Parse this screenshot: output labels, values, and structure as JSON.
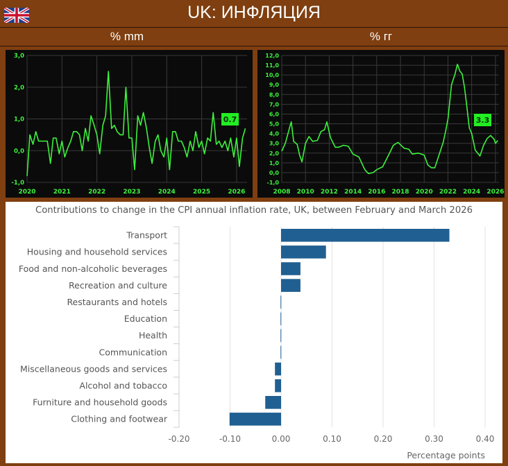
{
  "header": {
    "title": "UK: ИНФЛЯЦИЯ",
    "flag_icon": "uk-flag-icon"
  },
  "subtitles": {
    "left": "% mm",
    "right": "% гг"
  },
  "colors": {
    "background": "#7f3f10",
    "line": "#3df23d",
    "badge": "#22ee22",
    "bar": "#205f91"
  },
  "chart_data": [
    {
      "type": "line",
      "title": "% mm",
      "xlim": [
        2020,
        2026.3
      ],
      "ylim": [
        -1.0,
        3.0
      ],
      "x_ticks": [
        "2020",
        "2021",
        "2022",
        "2023",
        "2024",
        "2025",
        "2026"
      ],
      "y_ticks": [
        "-1,0",
        "0,0",
        "1,0",
        "2,0",
        "3,0"
      ],
      "grid": true,
      "last_value_label": "0.7",
      "points": [
        [
          2020.0,
          -0.8
        ],
        [
          2020.08,
          0.5
        ],
        [
          2020.17,
          0.2
        ],
        [
          2020.25,
          0.6
        ],
        [
          2020.33,
          0.3
        ],
        [
          2020.42,
          0.3
        ],
        [
          2020.5,
          0.3
        ],
        [
          2020.58,
          0.3
        ],
        [
          2020.67,
          -0.4
        ],
        [
          2020.75,
          0.4
        ],
        [
          2020.83,
          0.4
        ],
        [
          2020.92,
          -0.1
        ],
        [
          2021.0,
          0.3
        ],
        [
          2021.08,
          -0.2
        ],
        [
          2021.17,
          0.1
        ],
        [
          2021.25,
          0.3
        ],
        [
          2021.33,
          0.6
        ],
        [
          2021.42,
          0.6
        ],
        [
          2021.5,
          0.5
        ],
        [
          2021.58,
          0.0
        ],
        [
          2021.67,
          0.7
        ],
        [
          2021.75,
          0.3
        ],
        [
          2021.83,
          1.1
        ],
        [
          2021.92,
          0.8
        ],
        [
          2022.0,
          0.5
        ],
        [
          2022.08,
          -0.1
        ],
        [
          2022.17,
          0.8
        ],
        [
          2022.25,
          1.1
        ],
        [
          2022.33,
          2.5
        ],
        [
          2022.42,
          0.7
        ],
        [
          2022.5,
          0.8
        ],
        [
          2022.58,
          0.6
        ],
        [
          2022.67,
          0.5
        ],
        [
          2022.75,
          0.5
        ],
        [
          2022.83,
          2.0
        ],
        [
          2022.92,
          0.4
        ],
        [
          2023.0,
          0.4
        ],
        [
          2023.08,
          -0.6
        ],
        [
          2023.17,
          1.1
        ],
        [
          2023.25,
          0.8
        ],
        [
          2023.33,
          1.2
        ],
        [
          2023.42,
          0.7
        ],
        [
          2023.5,
          0.1
        ],
        [
          2023.58,
          -0.4
        ],
        [
          2023.67,
          0.3
        ],
        [
          2023.75,
          0.5
        ],
        [
          2023.83,
          0.0
        ],
        [
          2023.92,
          -0.2
        ],
        [
          2024.0,
          0.4
        ],
        [
          2024.08,
          -0.6
        ],
        [
          2024.17,
          0.6
        ],
        [
          2024.25,
          0.6
        ],
        [
          2024.33,
          0.3
        ],
        [
          2024.42,
          0.3
        ],
        [
          2024.5,
          0.1
        ],
        [
          2024.58,
          -0.2
        ],
        [
          2024.67,
          0.3
        ],
        [
          2024.75,
          0.0
        ],
        [
          2024.83,
          0.6
        ],
        [
          2024.92,
          0.1
        ],
        [
          2025.0,
          0.3
        ],
        [
          2025.08,
          -0.1
        ],
        [
          2025.17,
          0.4
        ],
        [
          2025.25,
          0.3
        ],
        [
          2025.33,
          1.2
        ],
        [
          2025.42,
          0.2
        ],
        [
          2025.5,
          0.3
        ],
        [
          2025.58,
          0.1
        ],
        [
          2025.67,
          0.3
        ],
        [
          2025.75,
          0.0
        ],
        [
          2025.83,
          0.4
        ],
        [
          2025.92,
          -0.2
        ],
        [
          2026.0,
          0.4
        ],
        [
          2026.08,
          -0.5
        ],
        [
          2026.17,
          0.4
        ],
        [
          2026.25,
          0.7
        ]
      ]
    },
    {
      "type": "line",
      "title": "% гг",
      "xlim": [
        2008,
        2026.3
      ],
      "ylim": [
        -1.0,
        12.0
      ],
      "x_ticks": [
        "2008",
        "2010",
        "2012",
        "2014",
        "2016",
        "2018",
        "2020",
        "2022",
        "2024",
        "2026"
      ],
      "y_ticks": [
        "-1,0",
        "0,0",
        "1,0",
        "2,0",
        "3,0",
        "4,0",
        "5,0",
        "6,0",
        "7,0",
        "8,0",
        "9,0",
        "10,0",
        "11,0",
        "12,0"
      ],
      "grid": true,
      "last_value_label": "3.3",
      "points": [
        [
          2008.0,
          2.2
        ],
        [
          2008.3,
          3.0
        ],
        [
          2008.7,
          4.8
        ],
        [
          2008.8,
          5.2
        ],
        [
          2009.0,
          3.2
        ],
        [
          2009.3,
          2.9
        ],
        [
          2009.5,
          1.8
        ],
        [
          2009.7,
          1.1
        ],
        [
          2010.0,
          3.0
        ],
        [
          2010.3,
          3.7
        ],
        [
          2010.6,
          3.2
        ],
        [
          2011.0,
          3.3
        ],
        [
          2011.3,
          4.2
        ],
        [
          2011.6,
          4.4
        ],
        [
          2011.8,
          5.2
        ],
        [
          2012.1,
          3.6
        ],
        [
          2012.5,
          2.6
        ],
        [
          2012.8,
          2.6
        ],
        [
          2013.2,
          2.8
        ],
        [
          2013.6,
          2.7
        ],
        [
          2014.0,
          1.9
        ],
        [
          2014.5,
          1.6
        ],
        [
          2015.0,
          0.3
        ],
        [
          2015.3,
          -0.1
        ],
        [
          2015.7,
          0.0
        ],
        [
          2016.0,
          0.3
        ],
        [
          2016.5,
          0.6
        ],
        [
          2017.0,
          1.8
        ],
        [
          2017.4,
          2.8
        ],
        [
          2017.8,
          3.1
        ],
        [
          2018.3,
          2.5
        ],
        [
          2018.7,
          2.4
        ],
        [
          2019.0,
          1.9
        ],
        [
          2019.5,
          2.0
        ],
        [
          2020.0,
          1.8
        ],
        [
          2020.3,
          0.8
        ],
        [
          2020.6,
          0.5
        ],
        [
          2020.9,
          0.5
        ],
        [
          2021.3,
          2.0
        ],
        [
          2021.6,
          3.1
        ],
        [
          2021.8,
          4.2
        ],
        [
          2022.0,
          5.5
        ],
        [
          2022.3,
          9.0
        ],
        [
          2022.6,
          10.1
        ],
        [
          2022.8,
          11.1
        ],
        [
          2023.0,
          10.4
        ],
        [
          2023.2,
          10.1
        ],
        [
          2023.4,
          8.7
        ],
        [
          2023.6,
          6.7
        ],
        [
          2023.8,
          4.6
        ],
        [
          2024.0,
          4.0
        ],
        [
          2024.3,
          2.3
        ],
        [
          2024.5,
          2.0
        ],
        [
          2024.7,
          1.7
        ],
        [
          2025.0,
          2.8
        ],
        [
          2025.3,
          3.5
        ],
        [
          2025.6,
          3.8
        ],
        [
          2025.9,
          3.4
        ],
        [
          2026.0,
          3.0
        ],
        [
          2026.2,
          3.3
        ]
      ]
    },
    {
      "type": "bar",
      "orientation": "horizontal",
      "title": "Contributions to change in the CPI annual inflation rate, UK, between February and March 2026",
      "xlabel": "Percentage points",
      "xlim": [
        -0.2,
        0.4
      ],
      "x_ticks": [
        "-0.20",
        "-0.10",
        "0.00",
        "0.10",
        "0.20",
        "0.30",
        "0.40"
      ],
      "grid": true,
      "categories": [
        "Transport",
        "Housing and household services",
        "Food and non-alcoholic beverages",
        "Recreation and culture",
        "Restaurants and hotels",
        "Education",
        "Health",
        "Communication",
        "Miscellaneous goods and services",
        "Alcohol and tobacco",
        "Furniture and household goods",
        "Clothing and footwear"
      ],
      "values": [
        0.33,
        0.088,
        0.038,
        0.038,
        -0.001,
        -0.001,
        -0.001,
        -0.001,
        -0.012,
        -0.012,
        -0.031,
        -0.101
      ]
    }
  ]
}
